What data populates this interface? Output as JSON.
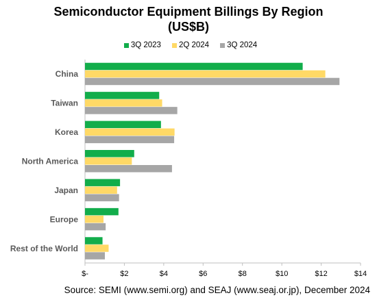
{
  "chart_data": {
    "type": "bar",
    "orientation": "horizontal",
    "title": "Semiconductor Equipment Billings By Region",
    "subtitle": "(US$B)",
    "categories": [
      "China",
      "Taiwan",
      "Korea",
      "North America",
      "Japan",
      "Europe",
      "Rest of the World"
    ],
    "series": [
      {
        "name": "3Q 2023",
        "color": "#12ad4b",
        "values": [
          11.06,
          3.77,
          3.86,
          2.5,
          1.78,
          1.7,
          0.89
        ]
      },
      {
        "name": "2Q 2024",
        "color": "#ffd966",
        "values": [
          12.21,
          3.92,
          4.55,
          2.38,
          1.63,
          0.94,
          1.2
        ]
      },
      {
        "name": "3Q 2024",
        "color": "#a6a6a6",
        "values": [
          12.93,
          4.69,
          4.53,
          4.42,
          1.73,
          1.05,
          1.01
        ]
      }
    ],
    "xlim": [
      0,
      14
    ],
    "xticks": [
      0,
      2,
      4,
      6,
      8,
      10,
      12,
      14
    ],
    "xtick_labels": [
      "$-",
      "$2",
      "$4",
      "$6",
      "$8",
      "$10",
      "$12",
      "$14"
    ],
    "grid": false,
    "legend_position": "top"
  },
  "source": "Source: SEMI (www.semi.org) and SEAJ (www.seaj.or.jp), December 2024"
}
